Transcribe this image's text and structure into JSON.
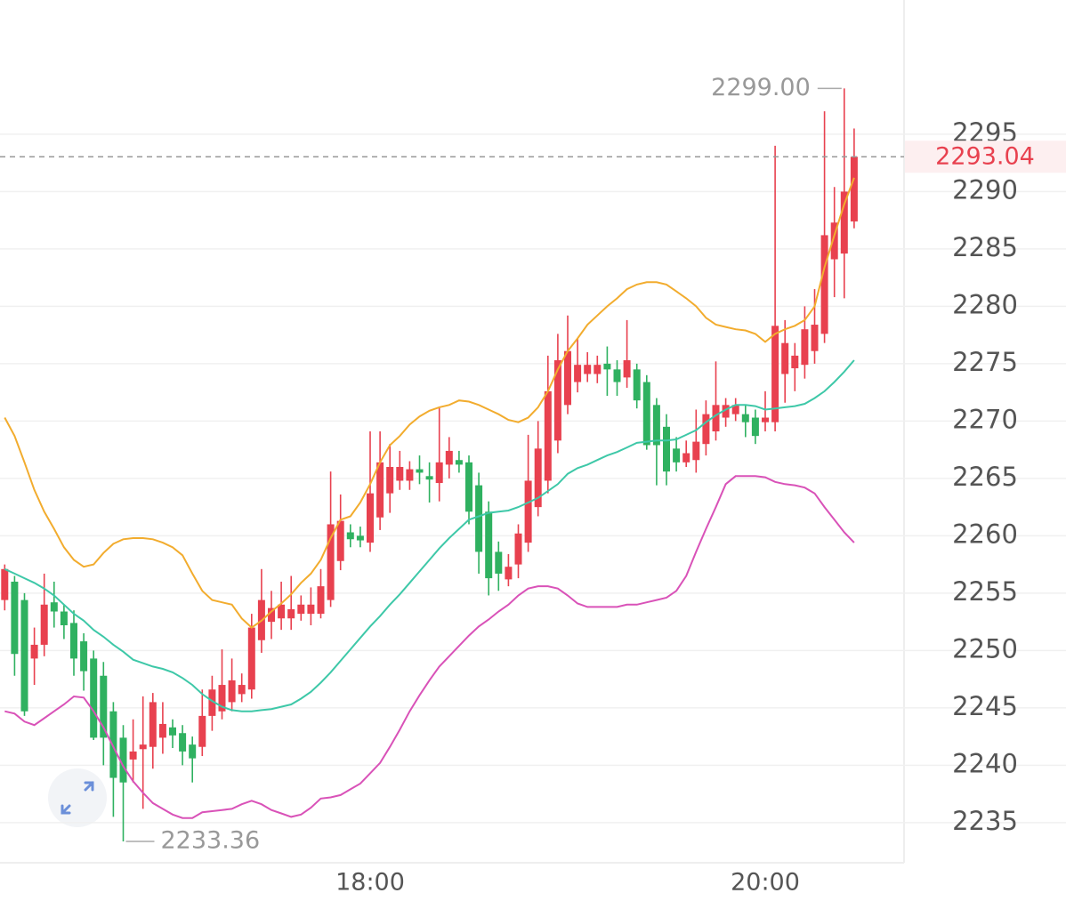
{
  "chart_data": {
    "type": "candlestick",
    "categories": [
      null,
      null,
      null,
      null,
      null,
      null,
      null,
      null,
      null,
      null,
      null,
      null,
      null,
      null,
      null,
      null,
      null,
      null,
      null,
      null,
      null,
      null,
      null,
      null,
      null,
      null,
      null,
      null,
      null,
      null,
      null,
      null,
      null,
      null,
      null,
      null,
      null,
      "18:00",
      null,
      null,
      null,
      null,
      null,
      null,
      null,
      null,
      null,
      null,
      null,
      null,
      null,
      null,
      null,
      null,
      null,
      null,
      null,
      null,
      null,
      null,
      null,
      null,
      null,
      null,
      null,
      null,
      null,
      null,
      null,
      null,
      null,
      null,
      null,
      null,
      null,
      null,
      null,
      "20:00",
      null,
      null,
      null,
      null,
      null,
      null,
      null,
      null,
      null
    ],
    "open": [
      2254.4,
      2256,
      2254.4,
      2249.3,
      2250.5,
      2254.2,
      2253.4,
      2252.4,
      2250.8,
      2249.3,
      2247.8,
      2244.7,
      2242.4,
      2240.5,
      2241.4,
      2241.6,
      2242.4,
      2243.3,
      2242.8,
      2241.8,
      2241.6,
      2244.3,
      2244.7,
      2245.5,
      2246.2,
      2246.6,
      2250.9,
      2252.5,
      2252.8,
      2252.8,
      2253.2,
      2253.2,
      2253.2,
      2254.4,
      2257.8,
      2260.3,
      2260,
      2259.4,
      2261.6,
      2263.7,
      2264.8,
      2264.8,
      2265.8,
      2265.2,
      2264.6,
      2266.2,
      2266.6,
      2266.4,
      2264.4,
      2262.1,
      2258.6,
      2256.2,
      2257.5,
      2259.4,
      2262.5,
      2264.8,
      2268.3,
      2271.4,
      2273.4,
      2274.1,
      2274.1,
      2275,
      2274.5,
      2273.8,
      2274.5,
      2273.4,
      2271.4,
      2269.5,
      2267.6,
      2266.4,
      2266.6,
      2268,
      2269.1,
      2270.3,
      2270.6,
      2270.6,
      2270.3,
      2269.9,
      2269.9,
      2274.1,
      2274.6,
      2274.9,
      2276.1,
      2277.6,
      2284.1,
      2284.6,
      2287.4
    ],
    "high": [
      2257.5,
      2256.5,
      2255,
      2252,
      2256.7,
      2256,
      2254,
      2253.5,
      2251.5,
      2250,
      2249,
      2245.5,
      2243.5,
      2244,
      2246,
      2246.3,
      2245.5,
      2244,
      2243.5,
      2242.5,
      2246.6,
      2247.8,
      2250.1,
      2249.3,
      2248,
      2253.2,
      2257.1,
      2255.2,
      2256,
      2256.5,
      2254.8,
      2255.5,
      2257.1,
      2265.6,
      2263.6,
      2261,
      2260.8,
      2269.1,
      2269.1,
      2268,
      2267.4,
      2266.5,
      2267,
      2266.4,
      2271.2,
      2268.6,
      2267.4,
      2267,
      2265.5,
      2263,
      2259.5,
      2258.4,
      2261,
      2268.8,
      2270,
      2275.7,
      2277.6,
      2279.2,
      2277.2,
      2276,
      2275.7,
      2276.5,
      2275.3,
      2278.8,
      2275,
      2274,
      2272,
      2270.6,
      2268.6,
      2268.3,
      2271,
      2271.8,
      2275.2,
      2272,
      2272,
      2271.4,
      2271,
      2272.6,
      2294,
      2278.8,
      2276.8,
      2280,
      2281.5,
      2297,
      2290.4,
      2299.0,
      2295.5
    ],
    "low": [
      2253.5,
      2247.8,
      2244.3,
      2247,
      2249.5,
      2252,
      2251,
      2247.8,
      2246.5,
      2242.2,
      2240,
      2235.5,
      2233.36,
      2238.5,
      2236.2,
      2239.7,
      2241,
      2241.5,
      2240,
      2238.5,
      2240.8,
      2243,
      2244,
      2244.7,
      2245.5,
      2245.8,
      2249.8,
      2251,
      2251.8,
      2251.8,
      2252.6,
      2252.2,
      2252.8,
      2253.8,
      2257,
      2259,
      2259,
      2258.6,
      2260.5,
      2262,
      2264,
      2264,
      2264.5,
      2262.9,
      2263,
      2265,
      2265.5,
      2261,
      2256.7,
      2254.8,
      2255.2,
      2255.6,
      2256.3,
      2258.6,
      2261.7,
      2263.7,
      2267.2,
      2270.6,
      2272.5,
      2273.4,
      2273.3,
      2272.2,
      2272.2,
      2272.9,
      2271.1,
      2267.5,
      2264.4,
      2264.4,
      2265.6,
      2266,
      2265.5,
      2267,
      2268.3,
      2269.5,
      2270,
      2268.6,
      2268,
      2269.1,
      2269.1,
      2271.6,
      2272.6,
      2273.7,
      2275,
      2276.8,
      2280.8,
      2280.7,
      2286.8
    ],
    "close": [
      2257.1,
      2249.7,
      2244.7,
      2250.5,
      2254,
      2253.4,
      2252.2,
      2249.3,
      2248.2,
      2242.4,
      2242.4,
      2238.9,
      2238.5,
      2241.2,
      2241.8,
      2245.5,
      2243.6,
      2242.6,
      2241.2,
      2240.6,
      2244.3,
      2246.6,
      2247,
      2247.4,
      2247,
      2252,
      2254.4,
      2253.7,
      2254,
      2253.6,
      2254,
      2254,
      2255.6,
      2261,
      2261.3,
      2259.7,
      2259.6,
      2263.7,
      2266.4,
      2266,
      2266,
      2265.8,
      2265.5,
      2264.9,
      2266.4,
      2267.4,
      2266.2,
      2262.1,
      2258.6,
      2256.3,
      2256.7,
      2257.3,
      2260.2,
      2264.8,
      2267.6,
      2272.6,
      2275.3,
      2276.1,
      2274.9,
      2274.9,
      2274.9,
      2274.5,
      2273.4,
      2275.3,
      2271.8,
      2267.9,
      2267.9,
      2265.6,
      2266.4,
      2267.2,
      2268.2,
      2270.6,
      2271.4,
      2271.4,
      2271.4,
      2269.9,
      2268.7,
      2270.3,
      2278.3,
      2276.8,
      2275.7,
      2278,
      2278.4,
      2286.2,
      2287.3,
      2290,
      2293.04
    ],
    "up_color": "#e8414f",
    "down_color": "#2fb160",
    "overlays": [
      {
        "color": "#f2ac2e",
        "values": [
          2270.3,
          2268.7,
          2266.4,
          2264,
          2262.1,
          2260.6,
          2259,
          2257.9,
          2257.3,
          2257.5,
          2258.5,
          2259.3,
          2259.7,
          2259.8,
          2259.8,
          2259.7,
          2259.4,
          2259,
          2258.3,
          2256.7,
          2255.2,
          2254.4,
          2254.2,
          2254,
          2252.8,
          2252,
          2252.6,
          2253.4,
          2254.1,
          2254.9,
          2255.9,
          2256.7,
          2257.9,
          2259.8,
          2261.4,
          2261.7,
          2262.9,
          2264.5,
          2266.4,
          2267.9,
          2268.7,
          2269.7,
          2270.4,
          2270.9,
          2271.2,
          2271.4,
          2271.8,
          2271.7,
          2271.4,
          2271,
          2270.6,
          2270.1,
          2269.9,
          2270.3,
          2271.2,
          2272.6,
          2274.5,
          2276.1,
          2277.2,
          2278.4,
          2279.2,
          2280,
          2280.7,
          2281.5,
          2281.9,
          2282.1,
          2282.1,
          2281.9,
          2281.3,
          2280.7,
          2280,
          2279,
          2278.4,
          2278.2,
          2278,
          2277.9,
          2277.6,
          2276.9,
          2277.6,
          2278,
          2278.3,
          2278.8,
          2280,
          2283.4,
          2286.2,
          2288.9,
          2291.2
        ]
      },
      {
        "color": "#3ec8a8",
        "values": [
          2257.1,
          2256.7,
          2256.3,
          2255.9,
          2255.4,
          2254.8,
          2254,
          2253.2,
          2252.6,
          2251.8,
          2251.2,
          2250.5,
          2249.9,
          2249.2,
          2248.9,
          2248.6,
          2248.4,
          2248.1,
          2247.6,
          2247,
          2246.2,
          2245.6,
          2245.1,
          2244.8,
          2244.7,
          2244.7,
          2244.8,
          2244.9,
          2245.1,
          2245.3,
          2245.8,
          2246.4,
          2247.2,
          2248.1,
          2249.1,
          2250.1,
          2251.1,
          2252.1,
          2253,
          2254,
          2254.9,
          2255.9,
          2256.9,
          2257.9,
          2258.9,
          2259.8,
          2260.6,
          2261.4,
          2261.7,
          2262,
          2262.1,
          2262.2,
          2262.5,
          2262.9,
          2263.3,
          2263.9,
          2264.5,
          2265.4,
          2265.9,
          2266.2,
          2266.6,
          2267,
          2267.3,
          2267.7,
          2268.1,
          2268.2,
          2268.3,
          2268.3,
          2268.4,
          2268.8,
          2269.2,
          2269.9,
          2270.5,
          2271,
          2271.4,
          2271.4,
          2271.3,
          2271,
          2271.1,
          2271.2,
          2271.3,
          2271.5,
          2272,
          2272.6,
          2273.4,
          2274.3,
          2275.3
        ]
      },
      {
        "color": "#d952b8",
        "values": [
          2244.7,
          2244.5,
          2243.8,
          2243.5,
          2244.1,
          2244.7,
          2245.3,
          2246,
          2245.9,
          2244.7,
          2243.3,
          2241.6,
          2239.9,
          2238.6,
          2237.6,
          2236.7,
          2236.2,
          2235.7,
          2235.4,
          2235.4,
          2235.9,
          2236,
          2236.1,
          2236.2,
          2236.6,
          2236.9,
          2236.6,
          2236.1,
          2235.8,
          2235.5,
          2235.7,
          2236.3,
          2237.1,
          2237.2,
          2237.4,
          2237.9,
          2238.4,
          2239.3,
          2240.2,
          2241.6,
          2243.1,
          2244.7,
          2246.1,
          2247.4,
          2248.6,
          2249.5,
          2250.4,
          2251.3,
          2252.1,
          2252.7,
          2253.4,
          2254,
          2254.8,
          2255.4,
          2255.6,
          2255.6,
          2255.4,
          2254.8,
          2254.1,
          2253.8,
          2253.8,
          2253.8,
          2253.8,
          2254,
          2254,
          2254.2,
          2254.4,
          2254.6,
          2255.2,
          2256.5,
          2258.6,
          2260.6,
          2262.5,
          2264.5,
          2265.2,
          2265.2,
          2265.2,
          2265.1,
          2264.7,
          2264.5,
          2264.4,
          2264.2,
          2263.7,
          2262.5,
          2261.4,
          2260.3,
          2259.4
        ]
      }
    ],
    "ylim": [
      2231.5,
      2306.7
    ],
    "yticks": [
      2235,
      2240,
      2245,
      2250,
      2255,
      2260,
      2265,
      2270,
      2275,
      2280,
      2285,
      2290,
      2295
    ],
    "grid": true,
    "high_label": "2299.00",
    "low_label": "2233.36",
    "last_price": {
      "value": 2293.04,
      "label": "2293.04"
    }
  }
}
